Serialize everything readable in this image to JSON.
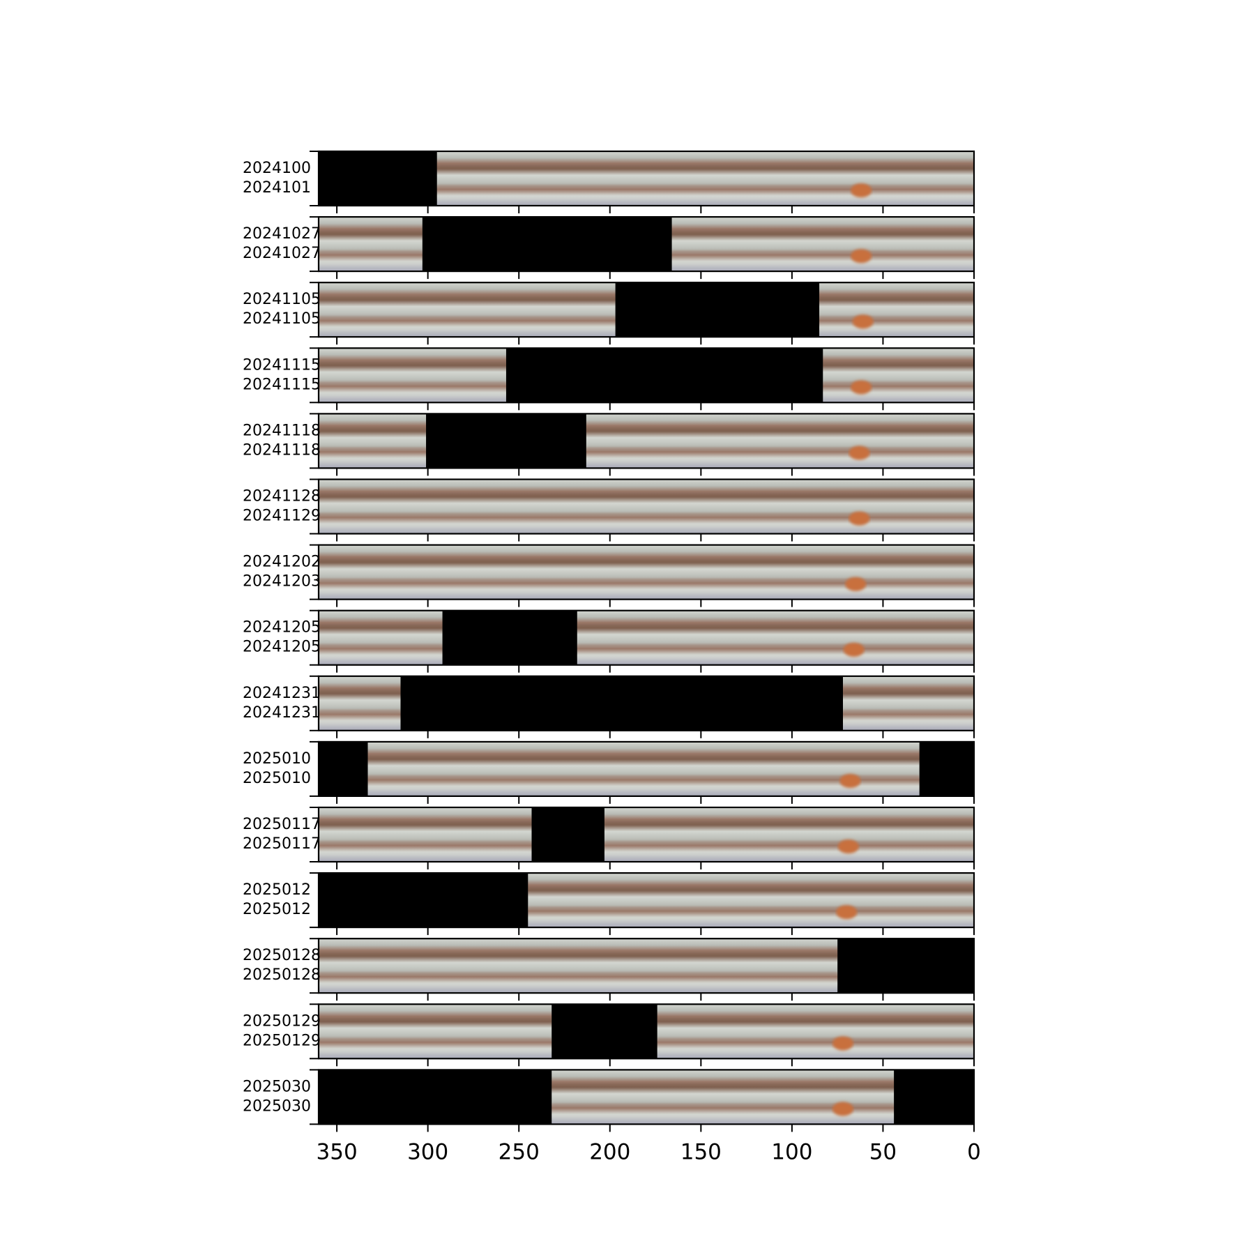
{
  "chart_data": {
    "type": "heatmap",
    "description_note": "",
    "x_ticks": [
      350,
      300,
      250,
      200,
      150,
      100,
      50,
      0
    ],
    "xlim": [
      360,
      0
    ],
    "xlabel": "",
    "ylabel": "",
    "title": "",
    "colors": {
      "band_base": "#b9bcb6",
      "belt": "#9a7868",
      "belt_dark": "#7f6050",
      "zone_light": "#d3d6d0",
      "south_zone": "#a9aab9",
      "spot": "#c8703e",
      "gap": "#000000"
    },
    "rows": [
      {
        "labels": [
          "2024100",
          "2024101"
        ],
        "coverage": [
          [
            0,
            295
          ]
        ],
        "spot": 62
      },
      {
        "labels": [
          "20241027",
          "20241027"
        ],
        "coverage": [
          [
            0,
            166
          ],
          [
            303,
            360
          ]
        ],
        "spot": 62
      },
      {
        "labels": [
          "20241105",
          "20241105"
        ],
        "coverage": [
          [
            0,
            85
          ],
          [
            197,
            360
          ]
        ],
        "spot": 61
      },
      {
        "labels": [
          "20241115",
          "20241115"
        ],
        "coverage": [
          [
            0,
            83
          ],
          [
            257,
            360
          ]
        ],
        "spot": 62
      },
      {
        "labels": [
          "20241118",
          "20241118"
        ],
        "coverage": [
          [
            0,
            213
          ],
          [
            301,
            360
          ]
        ],
        "spot": 63
      },
      {
        "labels": [
          "20241128",
          "20241129"
        ],
        "coverage": [
          [
            0,
            360
          ]
        ],
        "spot": 63
      },
      {
        "labels": [
          "20241202",
          "20241203"
        ],
        "coverage": [
          [
            0,
            360
          ]
        ],
        "spot": 65
      },
      {
        "labels": [
          "20241205",
          "20241205"
        ],
        "coverage": [
          [
            0,
            218
          ],
          [
            292,
            360
          ]
        ],
        "spot": 66
      },
      {
        "labels": [
          "20241231",
          "20241231"
        ],
        "coverage": [
          [
            0,
            72
          ],
          [
            315,
            360
          ]
        ],
        "spot": null
      },
      {
        "labels": [
          "2025010",
          "2025010"
        ],
        "coverage": [
          [
            30,
            333
          ]
        ],
        "spot": 68
      },
      {
        "labels": [
          "20250117",
          "20250117"
        ],
        "coverage": [
          [
            0,
            203
          ],
          [
            243,
            360
          ]
        ],
        "spot": 69
      },
      {
        "labels": [
          "2025012",
          "2025012"
        ],
        "coverage": [
          [
            0,
            245
          ]
        ],
        "spot": 70
      },
      {
        "labels": [
          "20250128",
          "20250128"
        ],
        "coverage": [
          [
            75,
            360
          ]
        ],
        "spot": null
      },
      {
        "labels": [
          "20250129",
          "20250129"
        ],
        "coverage": [
          [
            0,
            174
          ],
          [
            232,
            360
          ]
        ],
        "spot": 72
      },
      {
        "labels": [
          "2025030",
          "2025030"
        ],
        "coverage": [
          [
            44,
            232
          ]
        ],
        "spot": 72
      }
    ]
  }
}
